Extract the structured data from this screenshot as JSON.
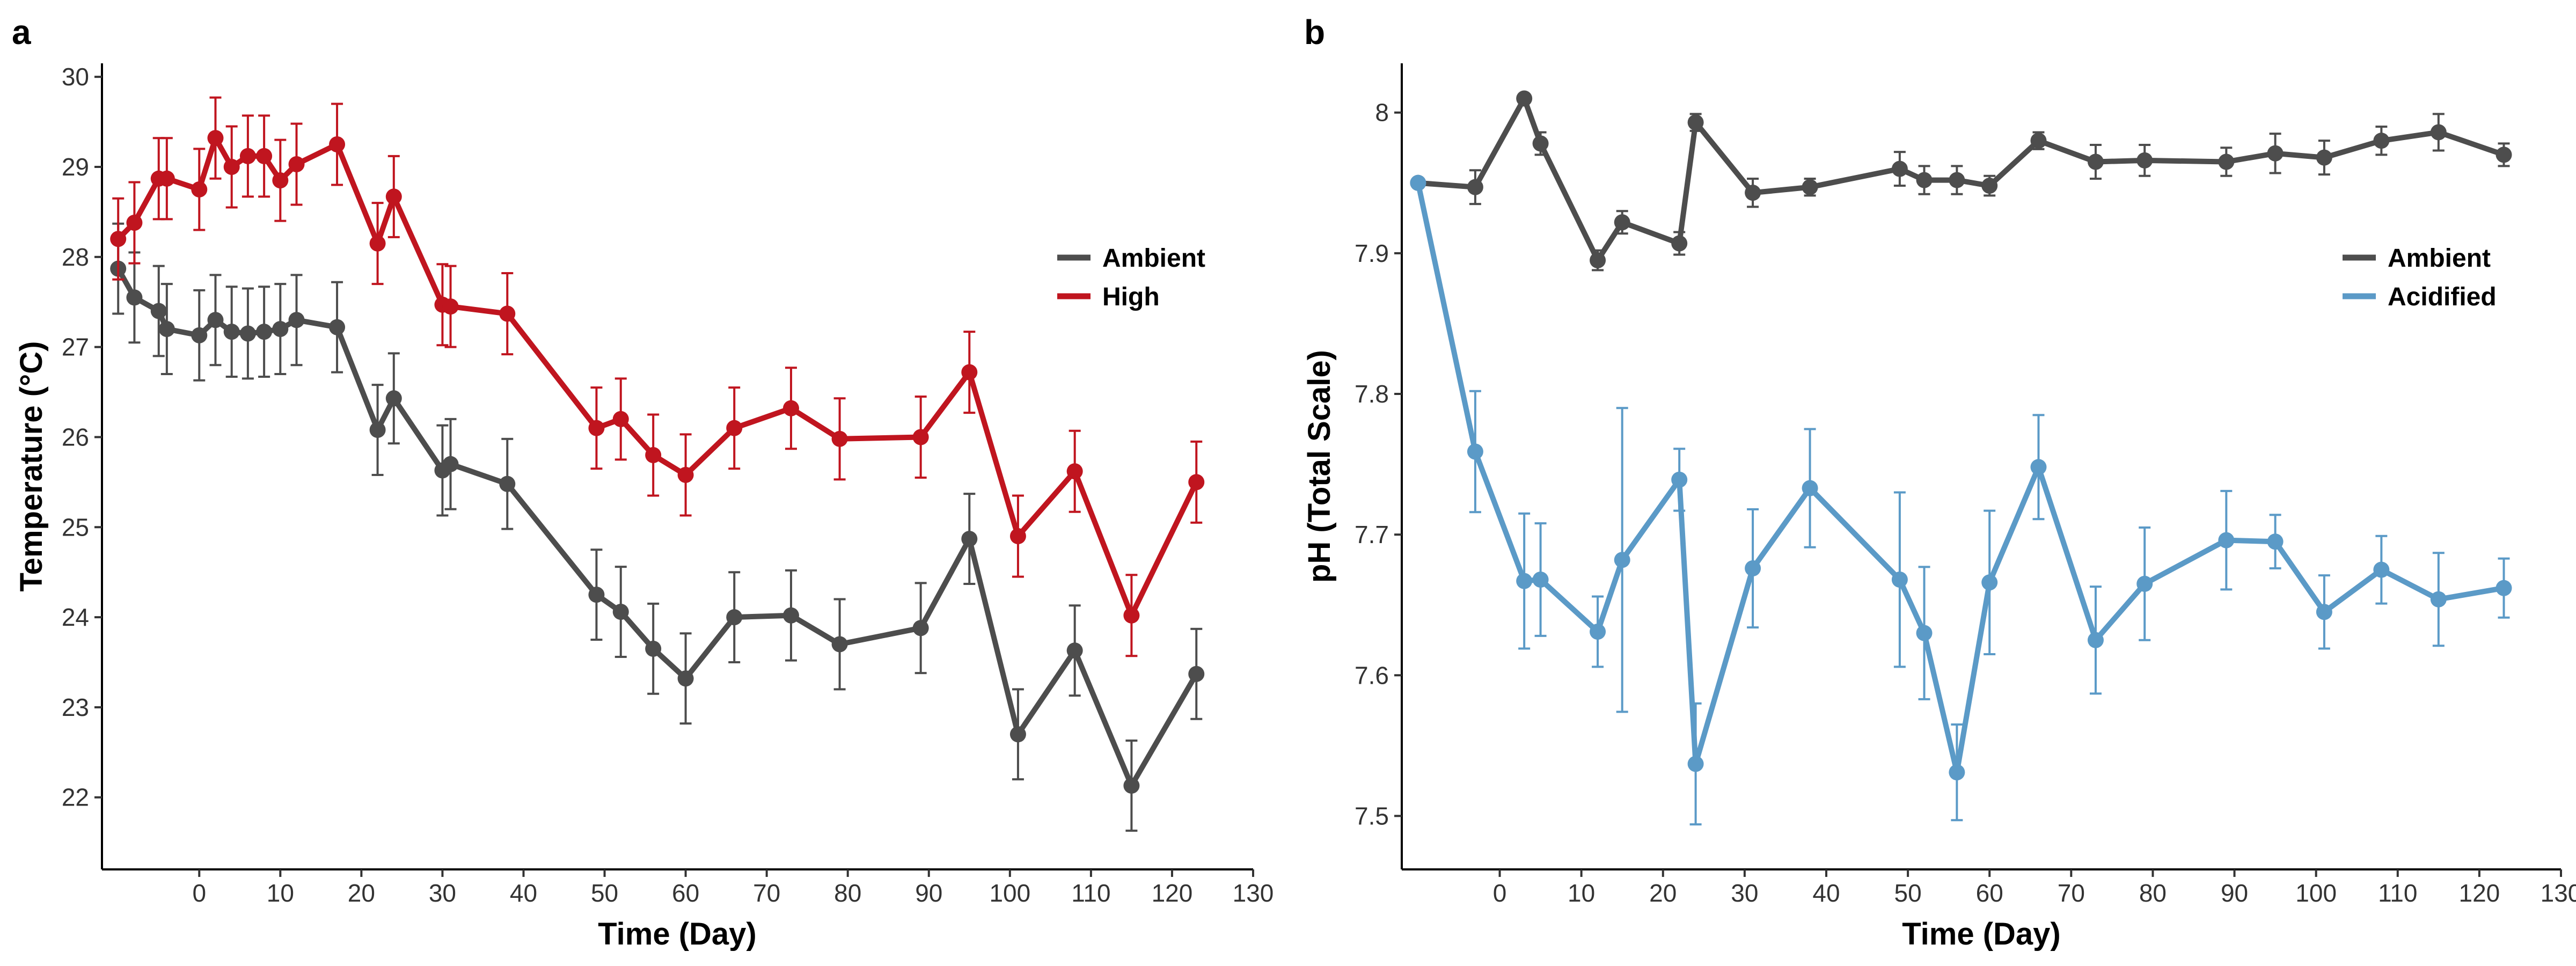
{
  "chart_data": [
    {
      "panel_label": "a",
      "type": "line",
      "xlabel": "Time (Day)",
      "ylabel": "Temperature (°C)",
      "xlim": [
        -12,
        130
      ],
      "ylim": [
        21.2,
        30.15
      ],
      "xticks": [
        0,
        10,
        20,
        30,
        40,
        50,
        60,
        70,
        80,
        90,
        100,
        110,
        120,
        130
      ],
      "yticks": [
        22,
        23,
        24,
        25,
        26,
        27,
        28,
        29,
        30
      ],
      "grid": false,
      "legend": "right",
      "series": [
        {
          "name": "Ambient",
          "color": "#4d4d4d",
          "x": [
            -10,
            -8,
            -5,
            -4,
            0,
            2,
            4,
            6,
            8,
            10,
            12,
            17,
            22,
            24,
            30,
            31,
            38,
            49,
            52,
            56,
            60,
            66,
            73,
            79,
            89,
            95,
            101,
            108,
            115,
            123
          ],
          "y": [
            27.87,
            27.55,
            27.4,
            27.2,
            27.13,
            27.3,
            27.17,
            27.15,
            27.17,
            27.2,
            27.3,
            27.22,
            26.08,
            26.43,
            25.63,
            25.7,
            25.48,
            24.25,
            24.06,
            23.65,
            23.32,
            24.0,
            24.02,
            23.7,
            23.88,
            24.87,
            22.7,
            23.63,
            22.13,
            23.37
          ],
          "error": [
            0.5,
            0.5,
            0.5,
            0.5,
            0.5,
            0.5,
            0.5,
            0.5,
            0.5,
            0.5,
            0.5,
            0.5,
            0.5,
            0.5,
            0.5,
            0.5,
            0.5,
            0.5,
            0.5,
            0.5,
            0.5,
            0.5,
            0.5,
            0.5,
            0.5,
            0.5,
            0.5,
            0.5,
            0.5,
            0.5
          ]
        },
        {
          "name": "High",
          "color": "#c0151f",
          "x": [
            -10,
            -8,
            -5,
            -4,
            0,
            2,
            4,
            6,
            8,
            10,
            12,
            17,
            22,
            24,
            30,
            31,
            38,
            49,
            52,
            56,
            60,
            66,
            73,
            79,
            89,
            95,
            101,
            108,
            115,
            123
          ],
          "y": [
            28.2,
            28.38,
            28.87,
            28.87,
            28.75,
            29.32,
            29.0,
            29.12,
            29.12,
            28.85,
            29.03,
            29.25,
            28.15,
            28.67,
            27.47,
            27.45,
            27.37,
            26.1,
            26.2,
            25.8,
            25.58,
            26.1,
            26.32,
            25.98,
            26.0,
            26.72,
            24.9,
            25.62,
            24.02,
            25.5
          ],
          "error": [
            0.45,
            0.45,
            0.45,
            0.45,
            0.45,
            0.45,
            0.45,
            0.45,
            0.45,
            0.45,
            0.45,
            0.45,
            0.45,
            0.45,
            0.45,
            0.45,
            0.45,
            0.45,
            0.45,
            0.45,
            0.45,
            0.45,
            0.45,
            0.45,
            0.45,
            0.45,
            0.45,
            0.45,
            0.45,
            0.45
          ]
        }
      ]
    },
    {
      "panel_label": "b",
      "type": "line",
      "xlabel": "Time (Day)",
      "ylabel": "pH (Total Scale)",
      "xlim": [
        -12,
        130
      ],
      "ylim": [
        7.462,
        8.035
      ],
      "xticks": [
        0,
        10,
        20,
        30,
        40,
        50,
        60,
        70,
        80,
        90,
        100,
        110,
        120,
        130
      ],
      "yticks": [
        7.5,
        7.6,
        7.7,
        7.8,
        7.9,
        8.0
      ],
      "grid": false,
      "legend": "right",
      "series": [
        {
          "name": "Ambient",
          "color": "#4d4d4d",
          "x": [
            -10,
            -3,
            3,
            5,
            12,
            15,
            22,
            24,
            31,
            38,
            49,
            52,
            56,
            60,
            66,
            73,
            79,
            89,
            95,
            101,
            108,
            115,
            123
          ],
          "y": [
            7.95,
            7.947,
            8.01,
            7.978,
            7.895,
            7.922,
            7.907,
            7.993,
            7.943,
            7.947,
            7.96,
            7.952,
            7.952,
            7.948,
            7.98,
            7.965,
            7.966,
            7.965,
            7.971,
            7.968,
            7.98,
            7.986,
            7.97
          ],
          "error": [
            0,
            0.012,
            0.002,
            0.008,
            0.007,
            0.008,
            0.008,
            0.006,
            0.01,
            0.006,
            0.012,
            0.01,
            0.01,
            0.007,
            0.006,
            0.012,
            0.011,
            0.01,
            0.014,
            0.012,
            0.01,
            0.013,
            0.008
          ]
        },
        {
          "name": "Acidified",
          "color": "#5b9ac7",
          "x": [
            -10,
            -3,
            3,
            5,
            12,
            15,
            22,
            24,
            31,
            38,
            49,
            52,
            56,
            60,
            66,
            73,
            79,
            89,
            95,
            101,
            108,
            115,
            123
          ],
          "y": [
            7.95,
            7.759,
            7.667,
            7.668,
            7.631,
            7.682,
            7.739,
            7.537,
            7.676,
            7.733,
            7.668,
            7.63,
            7.531,
            7.666,
            7.748,
            7.625,
            7.665,
            7.696,
            7.695,
            7.645,
            7.675,
            7.654,
            7.662
          ],
          "error": [
            0,
            0.043,
            0.048,
            0.04,
            0.025,
            0.108,
            0.022,
            0.043,
            0.042,
            0.042,
            0.062,
            0.047,
            0.034,
            0.051,
            0.037,
            0.038,
            0.04,
            0.035,
            0.019,
            0.026,
            0.024,
            0.033,
            0.021
          ]
        }
      ]
    }
  ]
}
